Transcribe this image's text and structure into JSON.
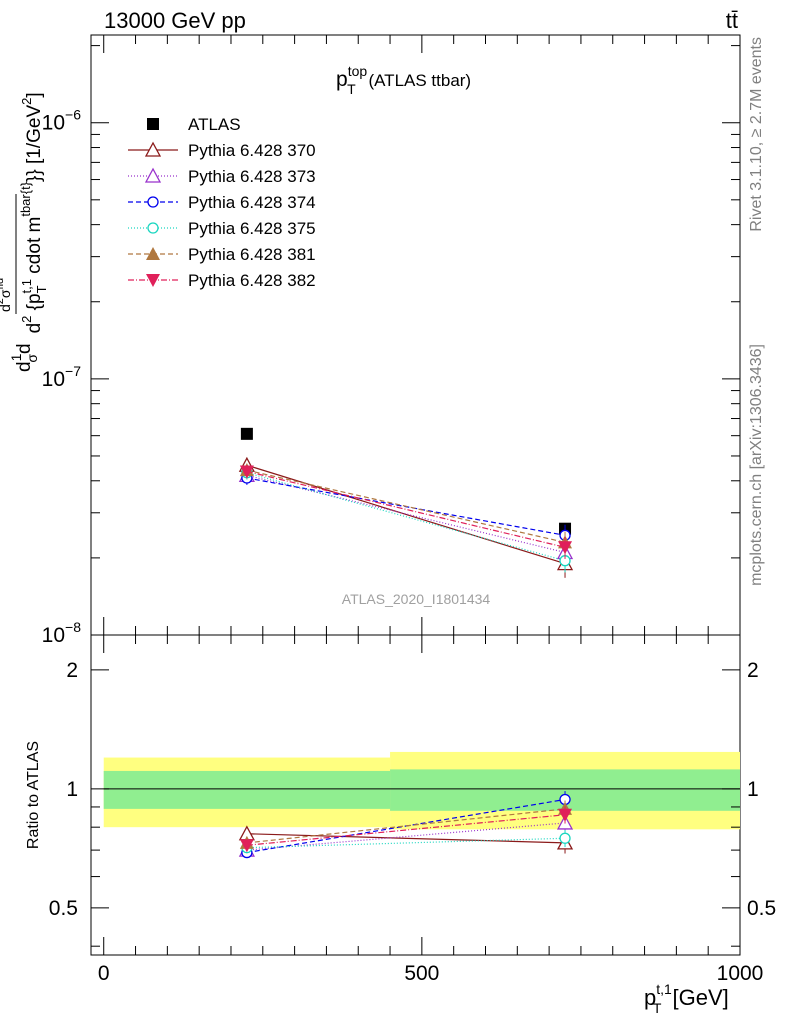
{
  "header": {
    "left": "13000 GeV pp",
    "right": "tt̄"
  },
  "plot_title": {
    "main": "p",
    "sup": "top",
    "sub": "T",
    "suffix": " (ATLAS ttbar)"
  },
  "side_labels": {
    "rivet": "Rivet 3.1.10, ≥ 2.7M events",
    "mcplots": "mcplots.cern.ch [arXiv:1306.3436]"
  },
  "watermark": "ATLAS_2020_I1801434",
  "axes": {
    "main_ylabel_parts": {
      "d1": "d",
      "frac_num": "1",
      "frac_den": "σ",
      "d2": "d",
      "inner_num": "d",
      "inner_num_sup": "2",
      "inner_num_sym": "σ",
      "inner_num_sub": "fid",
      "inner_den": "d",
      "inner_den_sup": "2",
      "inner_den_body": " {p",
      "inner_den_sub": "T",
      "inner_den_sup2": "t,1",
      "inner_den_body2": " cdot m",
      "inner_den_sup3": "tbar{t}",
      "tail": "}} [1/GeV",
      "tail_sup": "2",
      "tail_end": "]"
    },
    "ratio_ylabel": "Ratio to ATLAS",
    "xlabel_main": "p",
    "xlabel_sup": "t,1",
    "xlabel_sub": "T",
    "xlabel_unit": " [GeV]",
    "main_yticks": [
      {
        "base": "10",
        "exp": "−6",
        "value": 1e-06
      },
      {
        "base": "10",
        "exp": "−7",
        "value": 1e-07
      },
      {
        "base": "10",
        "exp": "−8",
        "value": 1e-08
      }
    ],
    "ratio_yticks": [
      "2",
      "1",
      "0.5"
    ],
    "xticks": [
      "0",
      "500",
      "1000"
    ]
  },
  "legend": [
    {
      "label": "ATLAS",
      "color": "#000000",
      "marker": "filled-square",
      "dash": ""
    },
    {
      "label": "Pythia 6.428 370",
      "color": "#8b1a1a",
      "marker": "open-triangle-up",
      "dash": ""
    },
    {
      "label": "Pythia 6.428 373",
      "color": "#9932cc",
      "marker": "open-triangle-up",
      "dash": "1,2"
    },
    {
      "label": "Pythia 6.428 374",
      "color": "#0000ee",
      "marker": "open-circle",
      "dash": "5,3"
    },
    {
      "label": "Pythia 6.428 375",
      "color": "#1ad6c0",
      "marker": "open-circle",
      "dash": "1,2"
    },
    {
      "label": "Pythia 6.428 381",
      "color": "#b07840",
      "marker": "filled-triangle-up",
      "dash": "5,3"
    },
    {
      "label": "Pythia 6.428 382",
      "color": "#e0205a",
      "marker": "filled-triangle-down",
      "dash": "6,2,1,2"
    }
  ],
  "chart_data": {
    "type": "line",
    "x": [
      225,
      725
    ],
    "bins": [
      [
        0,
        450
      ],
      [
        450,
        1000
      ]
    ],
    "xlim": [
      -20,
      1000
    ],
    "main_ylim": [
      1e-08,
      2.2e-06
    ],
    "main_ylog": true,
    "ratio_ylim": [
      0.38,
      2.45
    ],
    "ratio_ylog": true,
    "grid": false,
    "reference": {
      "name": "ATLAS",
      "values": [
        6.1e-08,
        2.6e-08
      ]
    },
    "uncertainty_bands": {
      "stat": [
        [
          0.89,
          1.11
        ],
        [
          0.88,
          1.12
        ]
      ],
      "total": [
        [
          0.8,
          1.2
        ],
        [
          0.79,
          1.24
        ]
      ],
      "stat_color": "#90ee90",
      "total_color": "#ffff80"
    },
    "series": [
      {
        "name": "Pythia 6.428 370",
        "values": [
          4.6e-08,
          1.9e-08
        ],
        "ratio": [
          0.77,
          0.73
        ],
        "errors": [
          0.035,
          0.06
        ]
      },
      {
        "name": "Pythia 6.428 373",
        "values": [
          4.2e-08,
          2.1e-08
        ],
        "ratio": [
          0.7,
          0.82
        ],
        "errors": [
          0.03,
          0.05
        ]
      },
      {
        "name": "Pythia 6.428 374",
        "values": [
          4.1e-08,
          2.45e-08
        ],
        "ratio": [
          0.69,
          0.94
        ],
        "errors": [
          0.03,
          0.05
        ]
      },
      {
        "name": "Pythia 6.428 375",
        "values": [
          4.3e-08,
          1.95e-08
        ],
        "ratio": [
          0.71,
          0.75
        ],
        "errors": [
          0.03,
          0.05
        ]
      },
      {
        "name": "Pythia 6.428 381",
        "values": [
          4.4e-08,
          2.3e-08
        ],
        "ratio": [
          0.73,
          0.89
        ],
        "errors": [
          0.03,
          0.05
        ]
      },
      {
        "name": "Pythia 6.428 382",
        "values": [
          4.35e-08,
          2.2e-08
        ],
        "ratio": [
          0.72,
          0.86
        ],
        "errors": [
          0.03,
          0.05
        ]
      }
    ]
  }
}
